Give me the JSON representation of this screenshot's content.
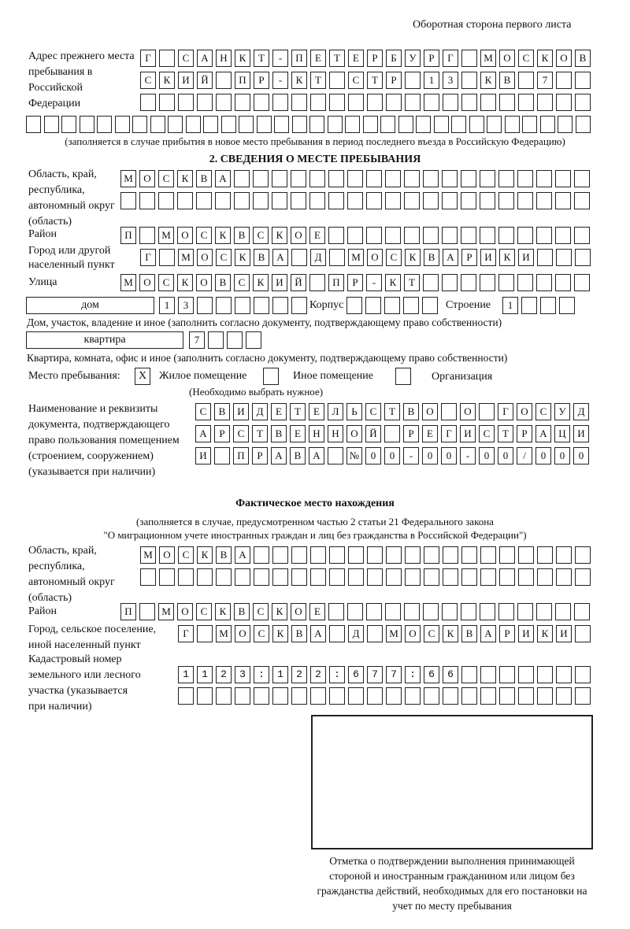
{
  "header": {
    "side_note": "Оборотная сторона первого листа"
  },
  "previous_address": {
    "label": "Адрес прежнего места пребывания в Российской Федерации",
    "rows": [
      "Г САНКТ-ПЕТЕРБУРГ МОСКОВ",
      "СКИЙ ПР-КТ СТР 13 КВ 7",
      "",
      ""
    ],
    "note": "(заполняется в случае прибытия в новое место пребывания в период последнего въезда в Российскую Федерацию)"
  },
  "section2": {
    "title": "2. СВЕДЕНИЯ О МЕСТЕ ПРЕБЫВАНИЯ",
    "region_label": "Область, край, республика, автономный округ (область)",
    "region_rows": [
      "МОСКВА",
      ""
    ],
    "district_label": "Район",
    "district": "П МОСКВСКОЕ",
    "city_label": "Город или другой населенный пункт",
    "city": "Г МОСКВА Д МОСКВАРИКИ",
    "street_label": "Улица",
    "street": "МОСКОВСКИЙ ПР-КТ",
    "house_type": "дом",
    "house_number": "13",
    "korpus_label": "Корпус",
    "korpus": "",
    "building_label": "Строение",
    "building": "1",
    "house_caption": "Дом, участок, владение и иное (заполнить согласно документу, подтверждающему право собственности)",
    "apartment_type": "квартира",
    "apartment_number": "7",
    "apartment_caption": "Квартира, комната, офис и иное (заполнить согласно документу, подтверждающему право собственности)",
    "place_label": "Место пребывания:",
    "place_options": [
      {
        "label": "Жилое помещение",
        "mark": "X"
      },
      {
        "label": "Иное помещение",
        "mark": ""
      },
      {
        "label": "Организация",
        "mark": ""
      }
    ],
    "place_hint": "(Необходимо выбрать нужное)",
    "document_label": "Наименование и реквизиты документа, подтверждающего право пользования помещением (строением, сооружением) (указывается при наличии)",
    "document_rows": [
      "СВИДЕТЕЛЬСТВО О ГОСУД",
      "АРСТВЕННОЙ РЕГИСТРАЦИ",
      "И ПРАВА №00-00-00/000"
    ]
  },
  "actual_location": {
    "title": "Фактическое место нахождения",
    "note_line1": "(заполняется в случае, предусмотренном частью 2 статьи 21 Федерального закона",
    "note_line2": "\"О миграционном учете иностранных граждан и лиц без гражданства в Российской Федерации\")",
    "region_label": "Область, край, республика, автономный округ (область)",
    "region_rows": [
      "МОСКВА",
      ""
    ],
    "district_label": "Район",
    "district": "П МОСКВСКОЕ",
    "city_label": "Город, сельское поселение, иной населенный пункт",
    "city": "Г МОСКВА Д МОСКВАРИКИ",
    "cadastral_label": "Кадастровый номер земельного или лесного участка (указывается при наличии)",
    "cadastral_rows": [
      "1123:122:677:66",
      ""
    ]
  },
  "confirmation": {
    "caption": "Отметка о подтверждении выполнения принимающей стороной и иностранным гражданином или лицом без гражданства действий, необходимых для его постановки на учет по месту пребывания"
  }
}
